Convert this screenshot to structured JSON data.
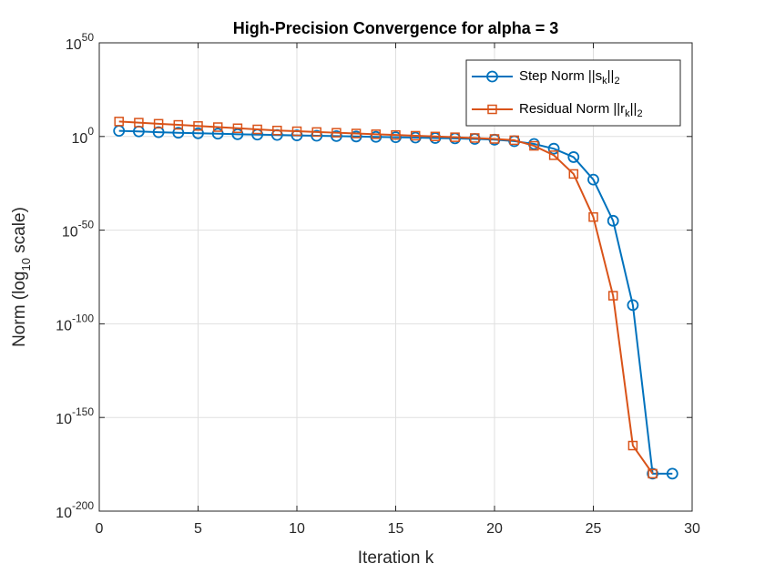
{
  "chart_data": {
    "type": "line",
    "title": "High-Precision Convergence for alpha = 3",
    "xlabel": {
      "main": "Iteration k"
    },
    "ylabel": {
      "pre": "Norm (log",
      "sub": "10",
      "post": " scale)"
    },
    "xlim": [
      0,
      30
    ],
    "ylim_exp": [
      -200,
      50
    ],
    "log_base": "10",
    "x_ticks": [
      "0",
      "5",
      "10",
      "15",
      "20",
      "25",
      "30"
    ],
    "x_tick_values": [
      0,
      5,
      10,
      15,
      20,
      25,
      30
    ],
    "y_tick_exponents": [
      "50",
      "0",
      "-50",
      "-100",
      "-150",
      "-200"
    ],
    "y_tick_values": [
      50,
      0,
      -50,
      -100,
      -150,
      -200
    ],
    "grid": true,
    "legend_position": "top-right",
    "series": [
      {
        "name": {
          "pre": "Step Norm ||s",
          "sub1": "k",
          "mid": "||",
          "sub2": "2"
        },
        "color": "#0072BD",
        "marker": "circle",
        "x": [
          1,
          2,
          3,
          4,
          5,
          6,
          7,
          8,
          9,
          10,
          11,
          12,
          13,
          14,
          15,
          16,
          17,
          18,
          19,
          20,
          21,
          22,
          23,
          24,
          25,
          26,
          27,
          28,
          29
        ],
        "log10_values": [
          3,
          2.7,
          2.3,
          2,
          1.7,
          1.5,
          1.2,
          1,
          0.8,
          0.6,
          0.4,
          0.2,
          0,
          -0.2,
          -0.4,
          -0.6,
          -0.8,
          -1,
          -1.3,
          -1.7,
          -2.5,
          -4,
          -6.5,
          -11,
          -23,
          -45,
          -90,
          -180,
          -180
        ]
      },
      {
        "name": {
          "pre": "Residual Norm ||r",
          "sub1": "k",
          "mid": "||",
          "sub2": "2"
        },
        "color": "#D95319",
        "marker": "square",
        "x": [
          1,
          2,
          3,
          4,
          5,
          6,
          7,
          8,
          9,
          10,
          11,
          12,
          13,
          14,
          15,
          16,
          17,
          18,
          19,
          20,
          21,
          22,
          23,
          24,
          25,
          26,
          27,
          28
        ],
        "log10_values": [
          8,
          7.4,
          6.8,
          6.2,
          5.6,
          5,
          4.4,
          3.8,
          3.2,
          2.8,
          2.4,
          2,
          1.6,
          1.2,
          0.8,
          0.4,
          0,
          -0.4,
          -0.8,
          -1.3,
          -2,
          -5,
          -10,
          -20,
          -43,
          -85,
          -165,
          -180
        ]
      }
    ]
  }
}
